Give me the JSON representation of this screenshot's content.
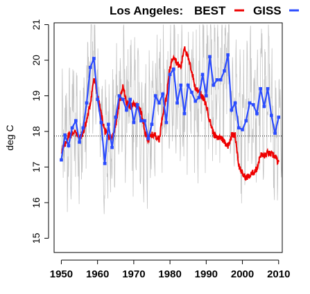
{
  "chart_data": {
    "type": "line",
    "title": "Los Angeles:",
    "ylabel": "deg C",
    "xlabel": "",
    "xlim": [
      1948,
      2011
    ],
    "ylim": [
      14.6,
      21.05
    ],
    "x_ticks": [
      1950,
      1960,
      1970,
      1980,
      1990,
      2000,
      2010
    ],
    "y_ticks": [
      15,
      16,
      17,
      18,
      19,
      20,
      21
    ],
    "reference_line": 17.87,
    "legend": {
      "placement": "top-right, outside plot",
      "items": [
        {
          "label": "BEST",
          "color": "#ee0000"
        },
        {
          "label": "GISS",
          "color": "#2a4bff"
        }
      ]
    },
    "series": [
      {
        "name": "GISS",
        "color": "#2a4bff",
        "style": "line-with-square-markers",
        "x": [
          1950,
          1951,
          1952,
          1953,
          1954,
          1955,
          1956,
          1957,
          1958,
          1959,
          1960,
          1961,
          1962,
          1963,
          1964,
          1965,
          1966,
          1967,
          1968,
          1969,
          1970,
          1971,
          1972,
          1973,
          1974,
          1975,
          1976,
          1977,
          1978,
          1979,
          1980,
          1981,
          1982,
          1983,
          1984,
          1985,
          1986,
          1987,
          1988,
          1989,
          1990,
          1991,
          1992,
          1993,
          1994,
          1995,
          1996,
          1997,
          1998,
          1999,
          2000,
          2001,
          2002,
          2003,
          2004,
          2005,
          2006,
          2007,
          2008,
          2009,
          2010
        ],
        "values": [
          17.2,
          17.9,
          17.6,
          18.1,
          18.3,
          17.7,
          18.1,
          18.8,
          19.8,
          20.05,
          18.9,
          18.25,
          17.1,
          18.2,
          17.55,
          18.4,
          19.0,
          18.9,
          18.6,
          18.9,
          18.25,
          18.75,
          18.3,
          18.3,
          17.8,
          18.2,
          19.0,
          18.8,
          19.05,
          18.25,
          19.6,
          19.75,
          18.8,
          19.3,
          18.5,
          19.3,
          19.1,
          18.85,
          18.95,
          19.6,
          19.0,
          20.1,
          19.3,
          19.45,
          19.45,
          19.7,
          20.15,
          18.6,
          18.8,
          18.1,
          18.05,
          18.3,
          18.8,
          18.75,
          18.5,
          19.2,
          18.7,
          19.2,
          18.45,
          17.95,
          18.4
        ]
      },
      {
        "name": "BEST",
        "color": "#ee0000",
        "style": "line",
        "x": [
          1950,
          1951,
          1952,
          1953,
          1954,
          1955,
          1956,
          1957,
          1958,
          1959,
          1960,
          1961,
          1962,
          1963,
          1964,
          1965,
          1966,
          1967,
          1968,
          1969,
          1970,
          1971,
          1972,
          1973,
          1974,
          1975,
          1976,
          1977,
          1978,
          1979,
          1980,
          1981,
          1982,
          1983,
          1984,
          1985,
          1986,
          1987,
          1988,
          1989,
          1990,
          1991,
          1992,
          1993,
          1994,
          1995,
          1996,
          1997,
          1998,
          1999,
          2000,
          2001,
          2002,
          2003,
          2004,
          2005,
          2006,
          2007,
          2008,
          2009,
          2010
        ],
        "values": [
          17.45,
          17.6,
          17.9,
          17.95,
          18.0,
          17.8,
          17.95,
          18.3,
          18.8,
          19.5,
          19.0,
          18.5,
          18.0,
          17.85,
          17.8,
          18.2,
          18.8,
          19.3,
          18.8,
          18.7,
          18.75,
          18.7,
          18.55,
          18.0,
          17.75,
          17.9,
          17.9,
          17.75,
          18.5,
          18.95,
          19.8,
          20.15,
          19.9,
          19.8,
          20.4,
          20.05,
          19.7,
          19.2,
          19.15,
          18.95,
          18.75,
          18.3,
          17.95,
          17.8,
          17.85,
          17.7,
          17.6,
          17.9,
          17.9,
          17.05,
          16.8,
          16.7,
          16.75,
          16.85,
          16.95,
          17.35,
          17.3,
          17.4,
          17.35,
          17.3,
          17.1
        ]
      }
    ]
  }
}
